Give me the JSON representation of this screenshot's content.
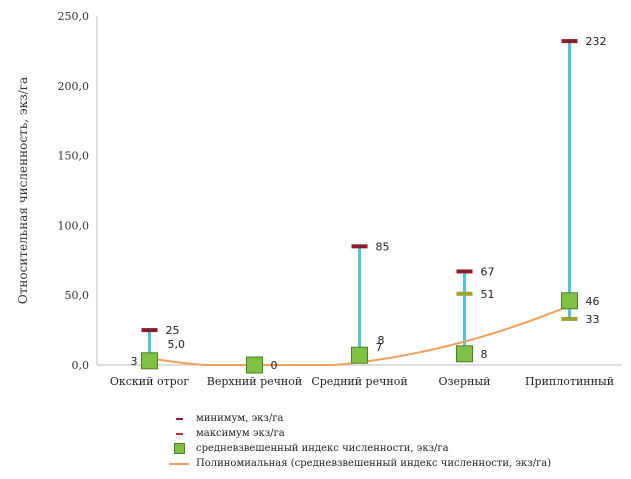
{
  "chart_data": {
    "type": "scatter",
    "title": "",
    "xlabel": "",
    "ylabel": "Относительная численность, экз/га",
    "ylim": [
      0,
      250
    ],
    "y_ticks": [
      "0,0",
      "50,0",
      "100,0",
      "150,0",
      "200,0",
      "250,0"
    ],
    "grid": false,
    "legend_position": "bottom",
    "categories": [
      "Окский отрог",
      "Верхний речной",
      "Средний речной",
      "Озерный",
      "Приплотинный"
    ],
    "series": [
      {
        "name": "минимум,  экз/га",
        "values": [
          null,
          null,
          null,
          51,
          33
        ],
        "labels": [
          "",
          "",
          "",
          "51",
          "33"
        ],
        "color": "#a0a030"
      },
      {
        "name": "максимум экз/га",
        "values": [
          25,
          null,
          85,
          67,
          232
        ],
        "labels": [
          "25",
          "",
          "85",
          "67",
          "232"
        ],
        "color": "#8b1a2c"
      },
      {
        "name": "средневзвешенный индекс численности, экз/га",
        "values": [
          3,
          0,
          7,
          8,
          46
        ],
        "labels": [
          "3",
          "0",
          "7",
          "8",
          "46"
        ],
        "color": "#7dc243"
      },
      {
        "name": "Полиномиальная (средневзвешенный индекс численности, экз/га)",
        "type": "trendline",
        "color": "#f0a05a"
      }
    ],
    "extra_labels": [
      {
        "category": "Окский отрог",
        "value": 5.0,
        "text": "5,0"
      },
      {
        "category": "Средний речной",
        "value": 8,
        "text": "8"
      }
    ],
    "range_bar_color": "#4fc3e0"
  },
  "legend": [
    {
      "label": "минимум,  экз/га",
      "symbol": "dash-min"
    },
    {
      "label": "максимум экз/га",
      "symbol": "dash-max"
    },
    {
      "label": "средневзвешенный индекс численности, экз/га",
      "symbol": "square"
    },
    {
      "label": "Полиномиальная (средневзвешенный индекс численности, экз/га)",
      "symbol": "line"
    }
  ]
}
